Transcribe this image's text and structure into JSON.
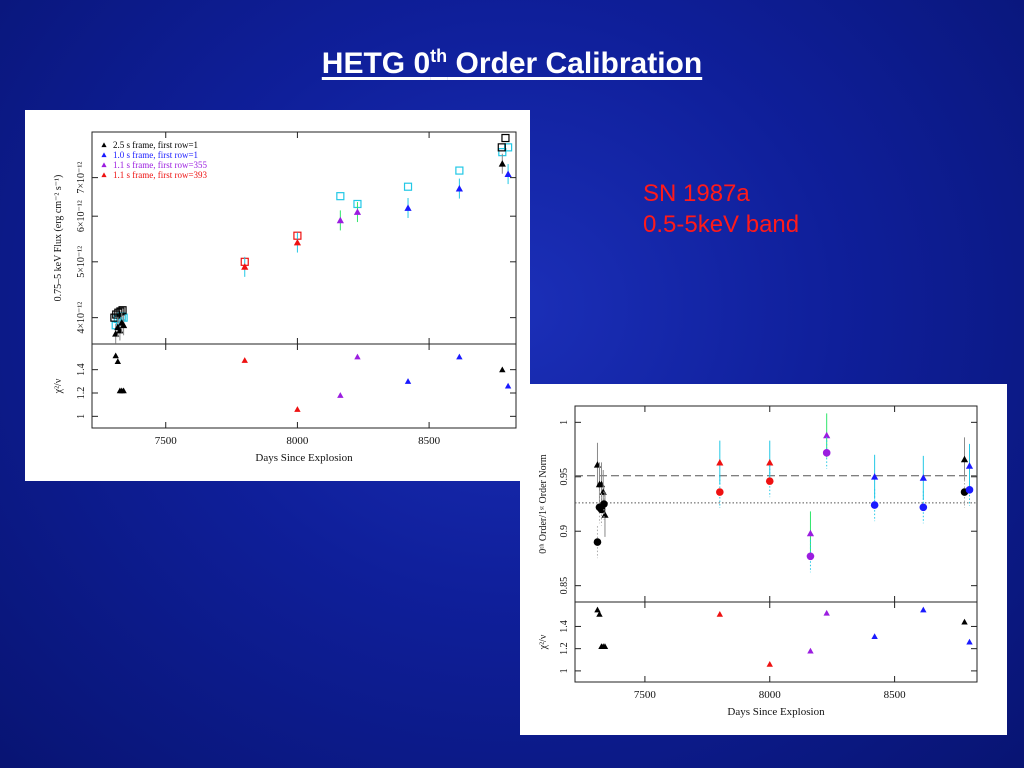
{
  "slide": {
    "title_main": "HETG  0",
    "title_sup": "th",
    "title_tail": " Order Calibration",
    "annotation_line1": "SN 1987a",
    "annotation_line2": "0.5-5keV band"
  },
  "colors": {
    "black": "#000000",
    "blue": "#1a1aff",
    "purple": "#9b1de0",
    "red": "#ee1111",
    "cyan": "#22c8e6",
    "green": "#2ee66a"
  },
  "chart_data": [
    {
      "type": "scatter",
      "panel": "flux",
      "xlabel": "Days Since Explosion",
      "ylabel": "0.75–5 keV Flux (erg cm⁻² s⁻¹)",
      "ylabel2": "χ²/ν",
      "xlim": [
        7220,
        7230,
        8830
      ],
      "x_ticks": [
        7500,
        8000,
        8500
      ],
      "x_tick_labels": [
        "7500",
        "8000",
        "8500"
      ],
      "y_scale": "log",
      "ylim": [
        3.6e-12,
        8.4e-12
      ],
      "y_ticks": [
        4e-12,
        5e-12,
        6e-12,
        7e-12
      ],
      "y_tick_labels": [
        "4×10⁻¹²",
        "5×10⁻¹²",
        "6×10⁻¹²",
        "7×10⁻¹²"
      ],
      "y2lim": [
        0.9,
        1.62
      ],
      "y2_ticks": [
        1,
        1.2,
        1.4
      ],
      "y2_tick_labels": [
        "1",
        "1.2",
        "1.4"
      ],
      "legend_position": "top-left",
      "legend": [
        {
          "label": "2.5 s frame, first row=1",
          "color": "black"
        },
        {
          "label": "1.0 s frame, first row=1",
          "color": "blue"
        },
        {
          "label": "1.1 s frame, first row=355",
          "color": "purple"
        },
        {
          "label": "1.1 s frame, first row=393",
          "color": "red"
        }
      ],
      "series": [
        {
          "color": "black",
          "x": [
            7310,
            7318,
            7326,
            7333,
            7340,
            8778
          ],
          "y": [
            3.75e-12,
            3.85e-12,
            3.8e-12,
            3.92e-12,
            3.88e-12,
            7.4e-12
          ],
          "chi2": [
            1.52,
            1.47,
            1.22,
            1.22,
            1.22,
            1.4
          ]
        },
        {
          "color": "blue",
          "x": [
            8420,
            8615,
            8800
          ],
          "y": [
            6.2e-12,
            6.7e-12,
            7.1e-12
          ],
          "chi2": [
            1.3,
            1.51,
            1.26
          ]
        },
        {
          "color": "purple",
          "x": [
            8163,
            8228
          ],
          "y": [
            5.9e-12,
            6.1e-12
          ],
          "chi2": [
            1.18,
            1.51
          ]
        },
        {
          "color": "red",
          "x": [
            7800,
            8000
          ],
          "y": [
            4.9e-12,
            5.4e-12
          ],
          "chi2": [
            1.48,
            1.06
          ]
        }
      ],
      "models": [
        {
          "color": "cyan",
          "x": [
            7310,
            7318,
            7326,
            7333,
            7340,
            8163,
            8228,
            8420,
            8615,
            8778,
            8800
          ],
          "y": [
            3.88e-12,
            3.98e-12,
            3.94e-12,
            4.02e-12,
            4e-12,
            6.5e-12,
            6.3e-12,
            6.75e-12,
            7.2e-12,
            7.75e-12,
            7.9e-12
          ]
        },
        {
          "color": "black",
          "x": [
            7305,
            7312,
            7320,
            7328,
            7336,
            8776,
            8790
          ],
          "y": [
            4e-12,
            4.05e-12,
            4.08e-12,
            4.1e-12,
            4.12e-12,
            7.9e-12,
            8.2e-12
          ]
        },
        {
          "color": "red",
          "x": [
            7800,
            8000
          ],
          "y": [
            5e-12,
            5.55e-12
          ]
        }
      ]
    },
    {
      "type": "scatter",
      "panel": "ratio",
      "xlabel": "Days Since Explosion",
      "ylabel": "0ᵗʰ Order/1ˢᵗ Order Norm",
      "ylabel2": "χ²/ν",
      "xlim": [
        7220,
        8830
      ],
      "x_ticks": [
        7500,
        8000,
        8500
      ],
      "x_tick_labels": [
        "7500",
        "8000",
        "8500"
      ],
      "ylim": [
        0.835,
        1.015
      ],
      "y_ticks": [
        0.85,
        0.9,
        0.95,
        1
      ],
      "y_tick_labels": [
        "0.85",
        "0.9",
        "0.95",
        "1"
      ],
      "y2lim": [
        0.9,
        1.62
      ],
      "y2_ticks": [
        1,
        1.2,
        1.4
      ],
      "y2_tick_labels": [
        "1",
        "1.2",
        "1.4"
      ],
      "ref_lines": [
        {
          "y": 0.951,
          "style": "dashed"
        },
        {
          "y": 0.926,
          "style": "dotted"
        }
      ],
      "series": [
        {
          "color": "black",
          "x": [
            7310,
            7318,
            7326,
            7333,
            7340,
            8780
          ],
          "y": [
            0.961,
            0.943,
            0.943,
            0.936,
            0.915,
            0.966
          ],
          "chi2": [
            1.55,
            1.51,
            1.22,
            1.22,
            1.22,
            1.44
          ]
        },
        {
          "color": "blue",
          "x": [
            8420,
            8615,
            8800
          ],
          "y": [
            0.95,
            0.949,
            0.96
          ],
          "chi2": [
            1.31,
            1.55,
            1.26
          ]
        },
        {
          "color": "purple",
          "x": [
            8163,
            8228
          ],
          "y": [
            0.898,
            0.988
          ],
          "chi2": [
            1.18,
            1.52
          ]
        },
        {
          "color": "red",
          "x": [
            7800,
            8000
          ],
          "y": [
            0.963,
            0.963
          ],
          "chi2": [
            1.51,
            1.06
          ]
        }
      ],
      "circles": [
        {
          "color": "black",
          "x": [
            7310,
            7318,
            7326,
            7336,
            8780
          ],
          "y": [
            0.89,
            0.922,
            0.92,
            0.925,
            0.936
          ]
        },
        {
          "color": "blue",
          "x": [
            8420,
            8615,
            8800
          ],
          "y": [
            0.924,
            0.922,
            0.938
          ]
        },
        {
          "color": "purple",
          "x": [
            8163,
            8228
          ],
          "y": [
            0.877,
            0.972
          ]
        },
        {
          "color": "red",
          "x": [
            7800,
            8000
          ],
          "y": [
            0.936,
            0.946
          ]
        }
      ]
    }
  ]
}
